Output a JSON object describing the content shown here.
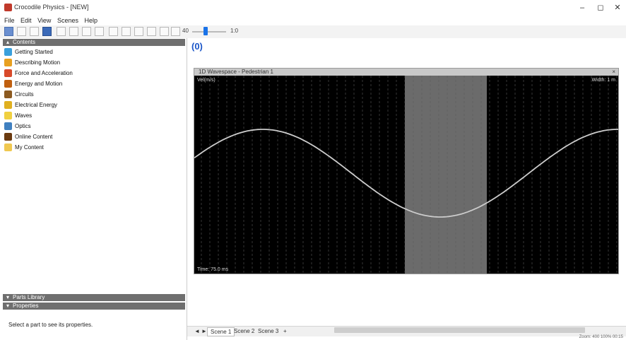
{
  "window": {
    "title": "Crocodile Physics - [NEW]",
    "minimize": "–",
    "maximize": "◻",
    "close": "✕"
  },
  "menu": [
    "File",
    "Edit",
    "View",
    "Scenes",
    "Help"
  ],
  "toolbar": {
    "zoom_left": "40",
    "zoom_right": "1:0"
  },
  "contents": {
    "header": "Contents",
    "items": [
      {
        "label": "Getting Started",
        "icon": "rocket-icon",
        "color": "#3aa0dc"
      },
      {
        "label": "Describing Motion",
        "icon": "motion-icon",
        "color": "#e8a020"
      },
      {
        "label": "Force and Acceleration",
        "icon": "force-icon",
        "color": "#d84a2a"
      },
      {
        "label": "Energy and Motion",
        "icon": "energy-icon",
        "color": "#c06010"
      },
      {
        "label": "Circuits",
        "icon": "circuit-icon",
        "color": "#8c5a20"
      },
      {
        "label": "Electrical Energy",
        "icon": "battery-icon",
        "color": "#e0b020"
      },
      {
        "label": "Waves",
        "icon": "wave-icon",
        "color": "#f0d040"
      },
      {
        "label": "Optics",
        "icon": "optics-icon",
        "color": "#4080c0"
      },
      {
        "label": "Online Content",
        "icon": "globe-icon",
        "color": "#6a3a10"
      },
      {
        "label": "My Content",
        "icon": "folder-icon",
        "color": "#f0c850"
      }
    ]
  },
  "parts_library": {
    "header": "Parts Library"
  },
  "properties": {
    "header": "Properties",
    "hint": "Select a part to see its properties."
  },
  "scene_label": "(0)",
  "graph": {
    "title": "1D Wavespace - Pedestrian 1",
    "top_left": "Vel(m/s)",
    "top_right": "Width: 1 m",
    "bottom_left": "Time: 75.0 ms",
    "wave_color": "#cccccc",
    "highlight_color": "#6b6b6b"
  },
  "tabs": {
    "nav_left": "◄",
    "nav_right": "►",
    "items": [
      "Scene 1",
      "Scene 2",
      "Scene 3"
    ],
    "add": "+"
  },
  "status": "Zoom: 400  100%  00:15"
}
